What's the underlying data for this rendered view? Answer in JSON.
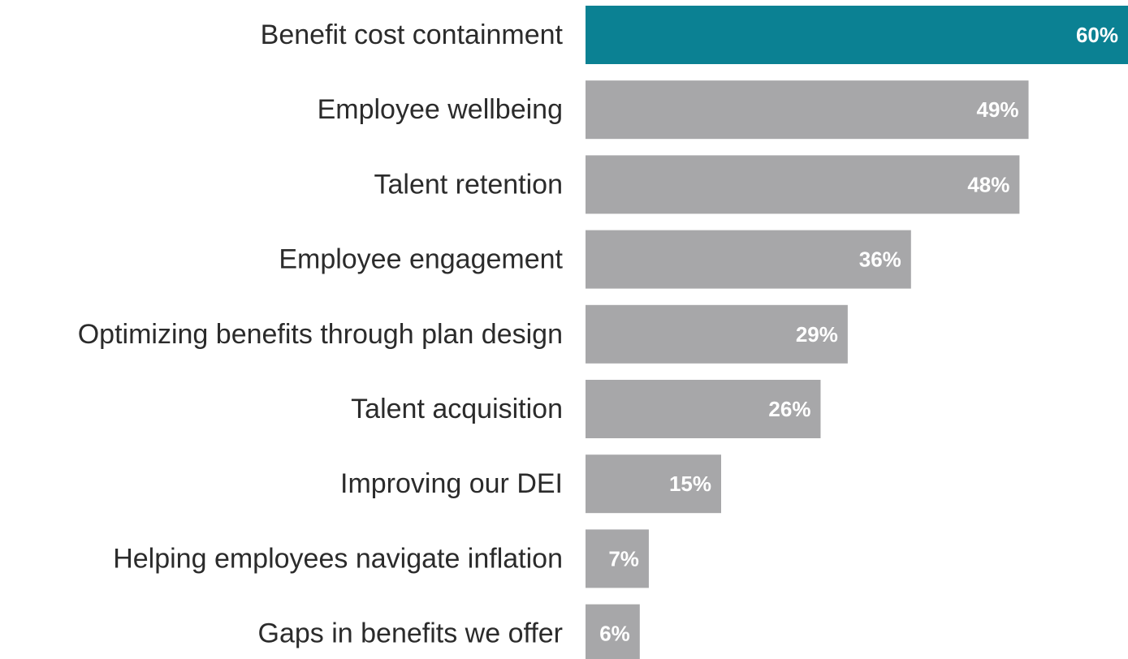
{
  "chart_data": {
    "type": "bar",
    "orientation": "horizontal",
    "categories": [
      "Benefit cost containment",
      "Employee wellbeing",
      "Talent retention",
      "Employee engagement",
      "Optimizing benefits through plan design",
      "Talent acquisition",
      "Improving our DEI",
      "Helping employees navigate inflation",
      "Gaps in benefits we offer"
    ],
    "values": [
      60,
      49,
      48,
      36,
      29,
      26,
      15,
      7,
      6
    ],
    "value_labels": [
      "60%",
      "49%",
      "48%",
      "36%",
      "29%",
      "26%",
      "15%",
      "7%",
      "6%"
    ],
    "unit": "%",
    "xlim": [
      0,
      60
    ],
    "grid": false,
    "legend": "none",
    "colors": {
      "highlight": "#0b8193",
      "bar": "#a7a7a9",
      "category_text": "#2b2b2b",
      "value_text": "#ffffff"
    },
    "highlight_index": 0
  }
}
